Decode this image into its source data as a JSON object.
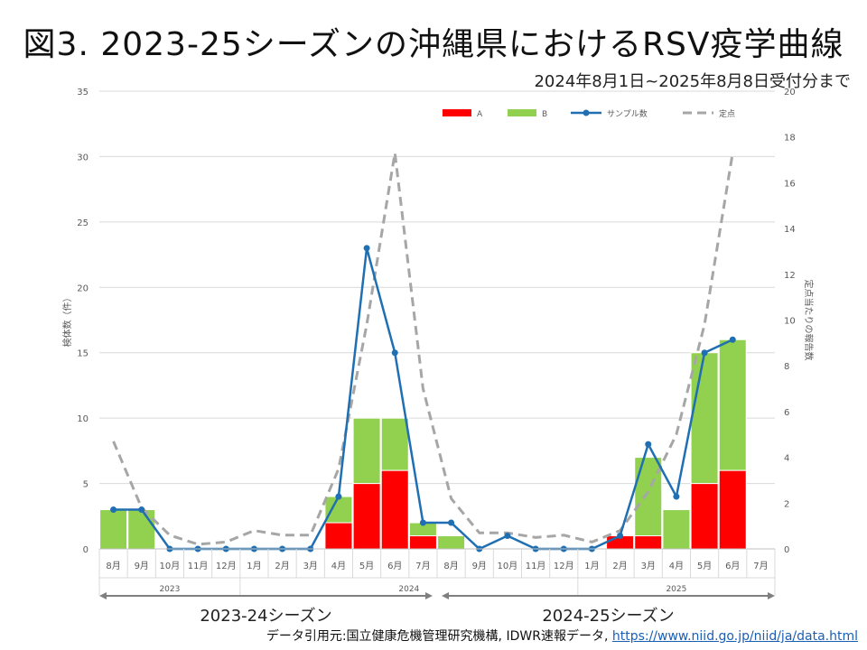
{
  "header": {
    "title": "図3. 2023-25シーズンの沖縄県におけるRSV疫学曲線",
    "subtitle": "2024年8月1日~2025年8月8日受付分まで"
  },
  "footer": {
    "source_prefix": "データ引用元:国立健康危機管理研究機構, IDWR速報データ,",
    "source_url": "https://www.niid.go.jp/niid/ja/data.html"
  },
  "colors": {
    "A": "#ff0000",
    "B": "#92d050",
    "samples": "#1f6fb2",
    "sentinel": "#a6a6a6"
  },
  "chart_data": {
    "type": "bar",
    "stacked": true,
    "categories": [
      "8月",
      "9月",
      "10月",
      "11月",
      "12月",
      "1月",
      "2月",
      "3月",
      "4月",
      "5月",
      "6月",
      "7月",
      "8月",
      "9月",
      "10月",
      "11月",
      "12月",
      "1月",
      "2月",
      "3月",
      "4月",
      "5月",
      "6月",
      "7月"
    ],
    "year_groups": [
      {
        "label": "2023",
        "start": 0,
        "end": 4
      },
      {
        "label": "2024",
        "start": 5,
        "end": 16
      },
      {
        "label": "2025",
        "start": 17,
        "end": 23
      }
    ],
    "season_groups": [
      {
        "label": "2023-24シーズン",
        "start": 0,
        "end": 11
      },
      {
        "label": "2024-25シーズン",
        "start": 12,
        "end": 23
      }
    ],
    "series": [
      {
        "name": "A",
        "type": "bar",
        "axis": "left",
        "values": [
          0,
          0,
          0,
          0,
          0,
          0,
          0,
          0,
          2,
          5,
          6,
          1,
          0,
          0,
          0,
          0,
          0,
          0,
          1,
          1,
          0,
          5,
          6,
          null
        ]
      },
      {
        "name": "B",
        "type": "bar",
        "axis": "left",
        "values": [
          3,
          3,
          0,
          0,
          0,
          0,
          0,
          0,
          2,
          5,
          4,
          1,
          1,
          0,
          0,
          0,
          0,
          0,
          0,
          6,
          3,
          10,
          10,
          null
        ]
      },
      {
        "name": "サンプル数",
        "type": "line",
        "axis": "left",
        "values": [
          3,
          3,
          0,
          0,
          0,
          0,
          0,
          0,
          4,
          23,
          15,
          2,
          2,
          0,
          1,
          0,
          0,
          0,
          1,
          8,
          4,
          15,
          16,
          null
        ]
      },
      {
        "name": "定点",
        "type": "line-dashed",
        "axis": "right",
        "values": [
          4.7,
          1.8,
          0.6,
          0.2,
          0.3,
          0.8,
          0.6,
          0.6,
          3.5,
          9.8,
          17.3,
          7.0,
          2.2,
          0.7,
          0.7,
          0.5,
          0.6,
          0.3,
          0.8,
          2.5,
          5.0,
          9.8,
          17.3,
          null
        ]
      }
    ],
    "ylabel": "検体数（件）",
    "y2label": "定点当たりの報告数",
    "ylim": [
      0,
      35
    ],
    "y2lim": [
      0,
      20
    ],
    "yticks": [
      0,
      5,
      10,
      15,
      20,
      25,
      30,
      35
    ],
    "y2ticks": [
      0,
      2,
      4,
      6,
      8,
      10,
      12,
      14,
      16,
      18,
      20
    ],
    "legend_position": "top-right",
    "grid": "horizontal"
  }
}
